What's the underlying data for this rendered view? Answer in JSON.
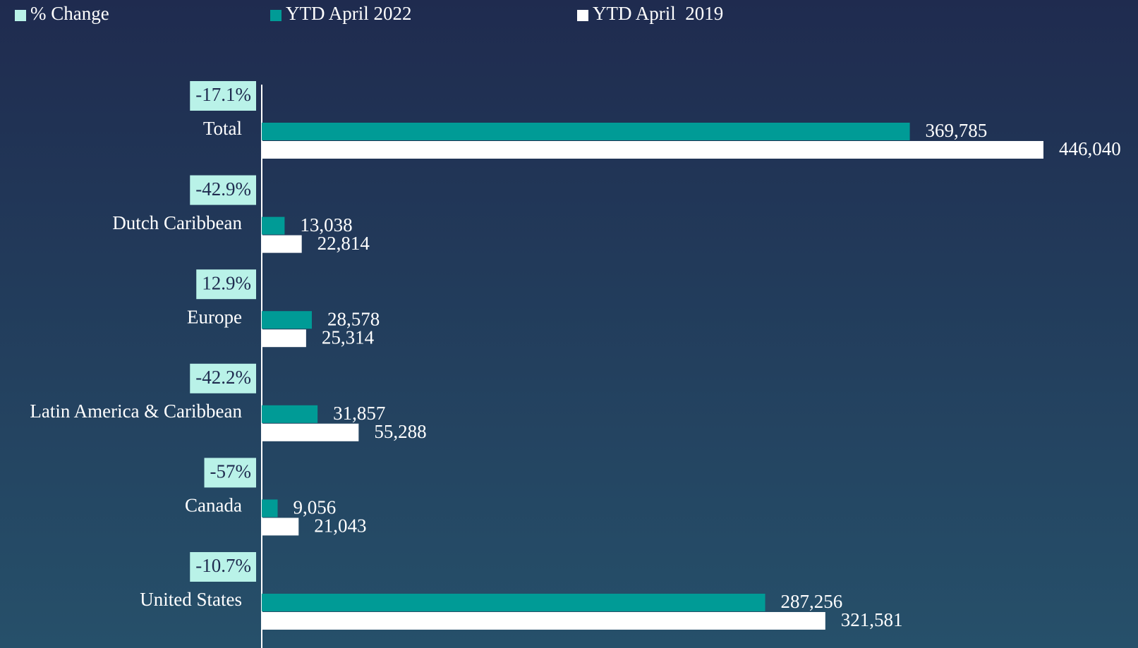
{
  "chart_data": {
    "type": "bar",
    "orientation": "horizontal",
    "categories": [
      "Total",
      "Dutch Caribbean",
      "Europe",
      "Latin America & Caribbean",
      "Canada",
      "United States"
    ],
    "series": [
      {
        "name": "% Change",
        "color": "#b9f2e8",
        "values": [
          -17.1,
          -42.9,
          12.9,
          -42.2,
          -57,
          -10.7
        ],
        "value_labels": [
          "-17.1%",
          "-42.9%",
          "12.9%",
          "-42.2%",
          "-57%",
          "-10.7%"
        ]
      },
      {
        "name": "YTD April 2022",
        "color": "#009b96",
        "values": [
          369785,
          13038,
          28578,
          31857,
          9056,
          287256
        ],
        "value_labels": [
          "369,785",
          "13,038",
          "28,578",
          "31,857",
          "9,056",
          "287,256"
        ]
      },
      {
        "name": "YTD April  2019",
        "color": "#ffffff",
        "values": [
          446040,
          22814,
          25314,
          55288,
          21043,
          321581
        ],
        "value_labels": [
          "446,040",
          "22,814",
          "25,314",
          "55,288",
          "21,043",
          "321,581"
        ]
      }
    ],
    "xlim": [
      0,
      500000
    ],
    "legend": "top-left"
  }
}
